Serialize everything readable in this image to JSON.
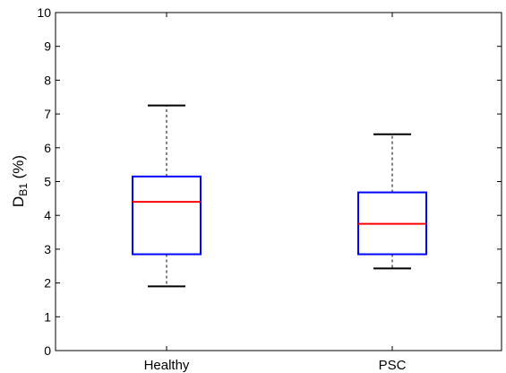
{
  "chart_data": {
    "type": "box",
    "ylabel_main": "D",
    "ylabel_sub": "B1",
    "ylabel_unit": " (%)",
    "ylim": [
      0,
      10
    ],
    "yticks": [
      "0",
      "1",
      "2",
      "3",
      "4",
      "5",
      "6",
      "7",
      "8",
      "9",
      "10"
    ],
    "grid": false,
    "categories": [
      "Healthy",
      "PSC"
    ],
    "boxes": [
      {
        "category": "Healthy",
        "whisker_low": 1.9,
        "q1": 2.85,
        "median": 4.4,
        "q3": 5.15,
        "whisker_high": 7.25
      },
      {
        "category": "PSC",
        "whisker_low": 2.43,
        "q1": 2.85,
        "median": 3.75,
        "q3": 4.68,
        "whisker_high": 6.4
      }
    ],
    "colors": {
      "box": "#0000ff",
      "median": "#ff0000",
      "whisker": "#000000"
    }
  }
}
